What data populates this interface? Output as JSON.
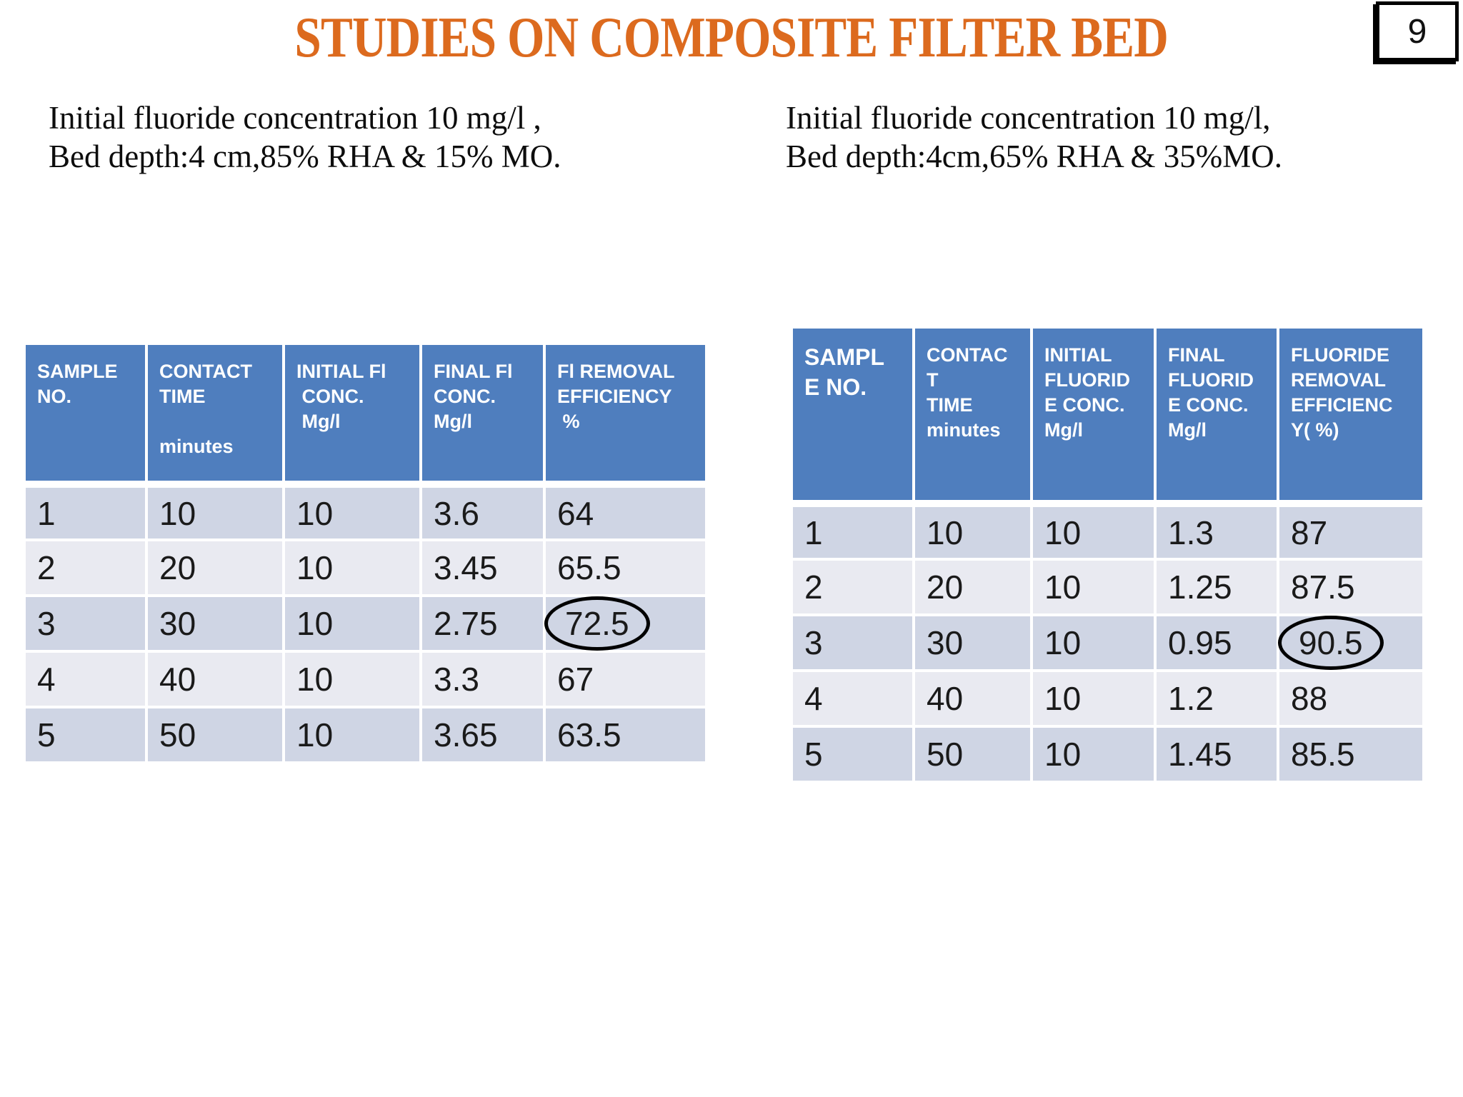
{
  "title": "STUDIES ON COMPOSITE FILTER BED",
  "page": {
    "number": "9"
  },
  "colors": {
    "title_orange": "#DC6A1E",
    "header_blue": "#4F7EBE",
    "row_odd": "#CFD5E4",
    "row_even": "#E9EAF1",
    "header_text": "#FFFFFF",
    "annotation": "#000000"
  },
  "left_panel": {
    "caption": "Initial fluoride concentration 10 mg/l ,\nBed depth:4 cm,85% RHA & 15% MO.",
    "table": {
      "headers": [
        "SAMPLE\nNO.",
        "CONTACT\nTIME\n\nminutes",
        "INITIAL Fl\n CONC.\n Mg/l",
        "FINAL Fl\nCONC.\nMg/l",
        "Fl REMOVAL\nEFFICIENCY\n %"
      ],
      "rows": [
        [
          "1",
          "10",
          "10",
          "3.6",
          "64"
        ],
        [
          "2",
          "20",
          "10",
          "3.45",
          "65.5"
        ],
        [
          "3",
          "30",
          "10",
          "2.75",
          "72.5"
        ],
        [
          "4",
          "40",
          "10",
          "3.3",
          "67"
        ],
        [
          "5",
          "50",
          "10",
          "3.65",
          "63.5"
        ]
      ],
      "circled": {
        "row": 2,
        "col": 4
      }
    }
  },
  "right_panel": {
    "caption": "Initial fluoride concentration 10 mg/l,\nBed depth:4cm,65% RHA & 35%MO.",
    "table": {
      "headers": [
        "SAMPL\nE NO.",
        "CONTAC\nT\nTIME\nminutes",
        "INITIAL\nFLUORID\nE CONC.\nMg/l",
        "FINAL\nFLUORID\nE CONC.\nMg/l",
        "FLUORIDE\nREMOVAL\nEFFICIENC\nY( %)"
      ],
      "rows": [
        [
          "1",
          "10",
          "10",
          "1.3",
          "87"
        ],
        [
          "2",
          "20",
          "10",
          "1.25",
          "87.5"
        ],
        [
          "3",
          "30",
          "10",
          "0.95",
          "90.5"
        ],
        [
          "4",
          "40",
          "10",
          "1.2",
          "88"
        ],
        [
          "5",
          "50",
          "10",
          "1.45",
          "85.5"
        ]
      ],
      "circled": {
        "row": 2,
        "col": 4
      }
    }
  }
}
